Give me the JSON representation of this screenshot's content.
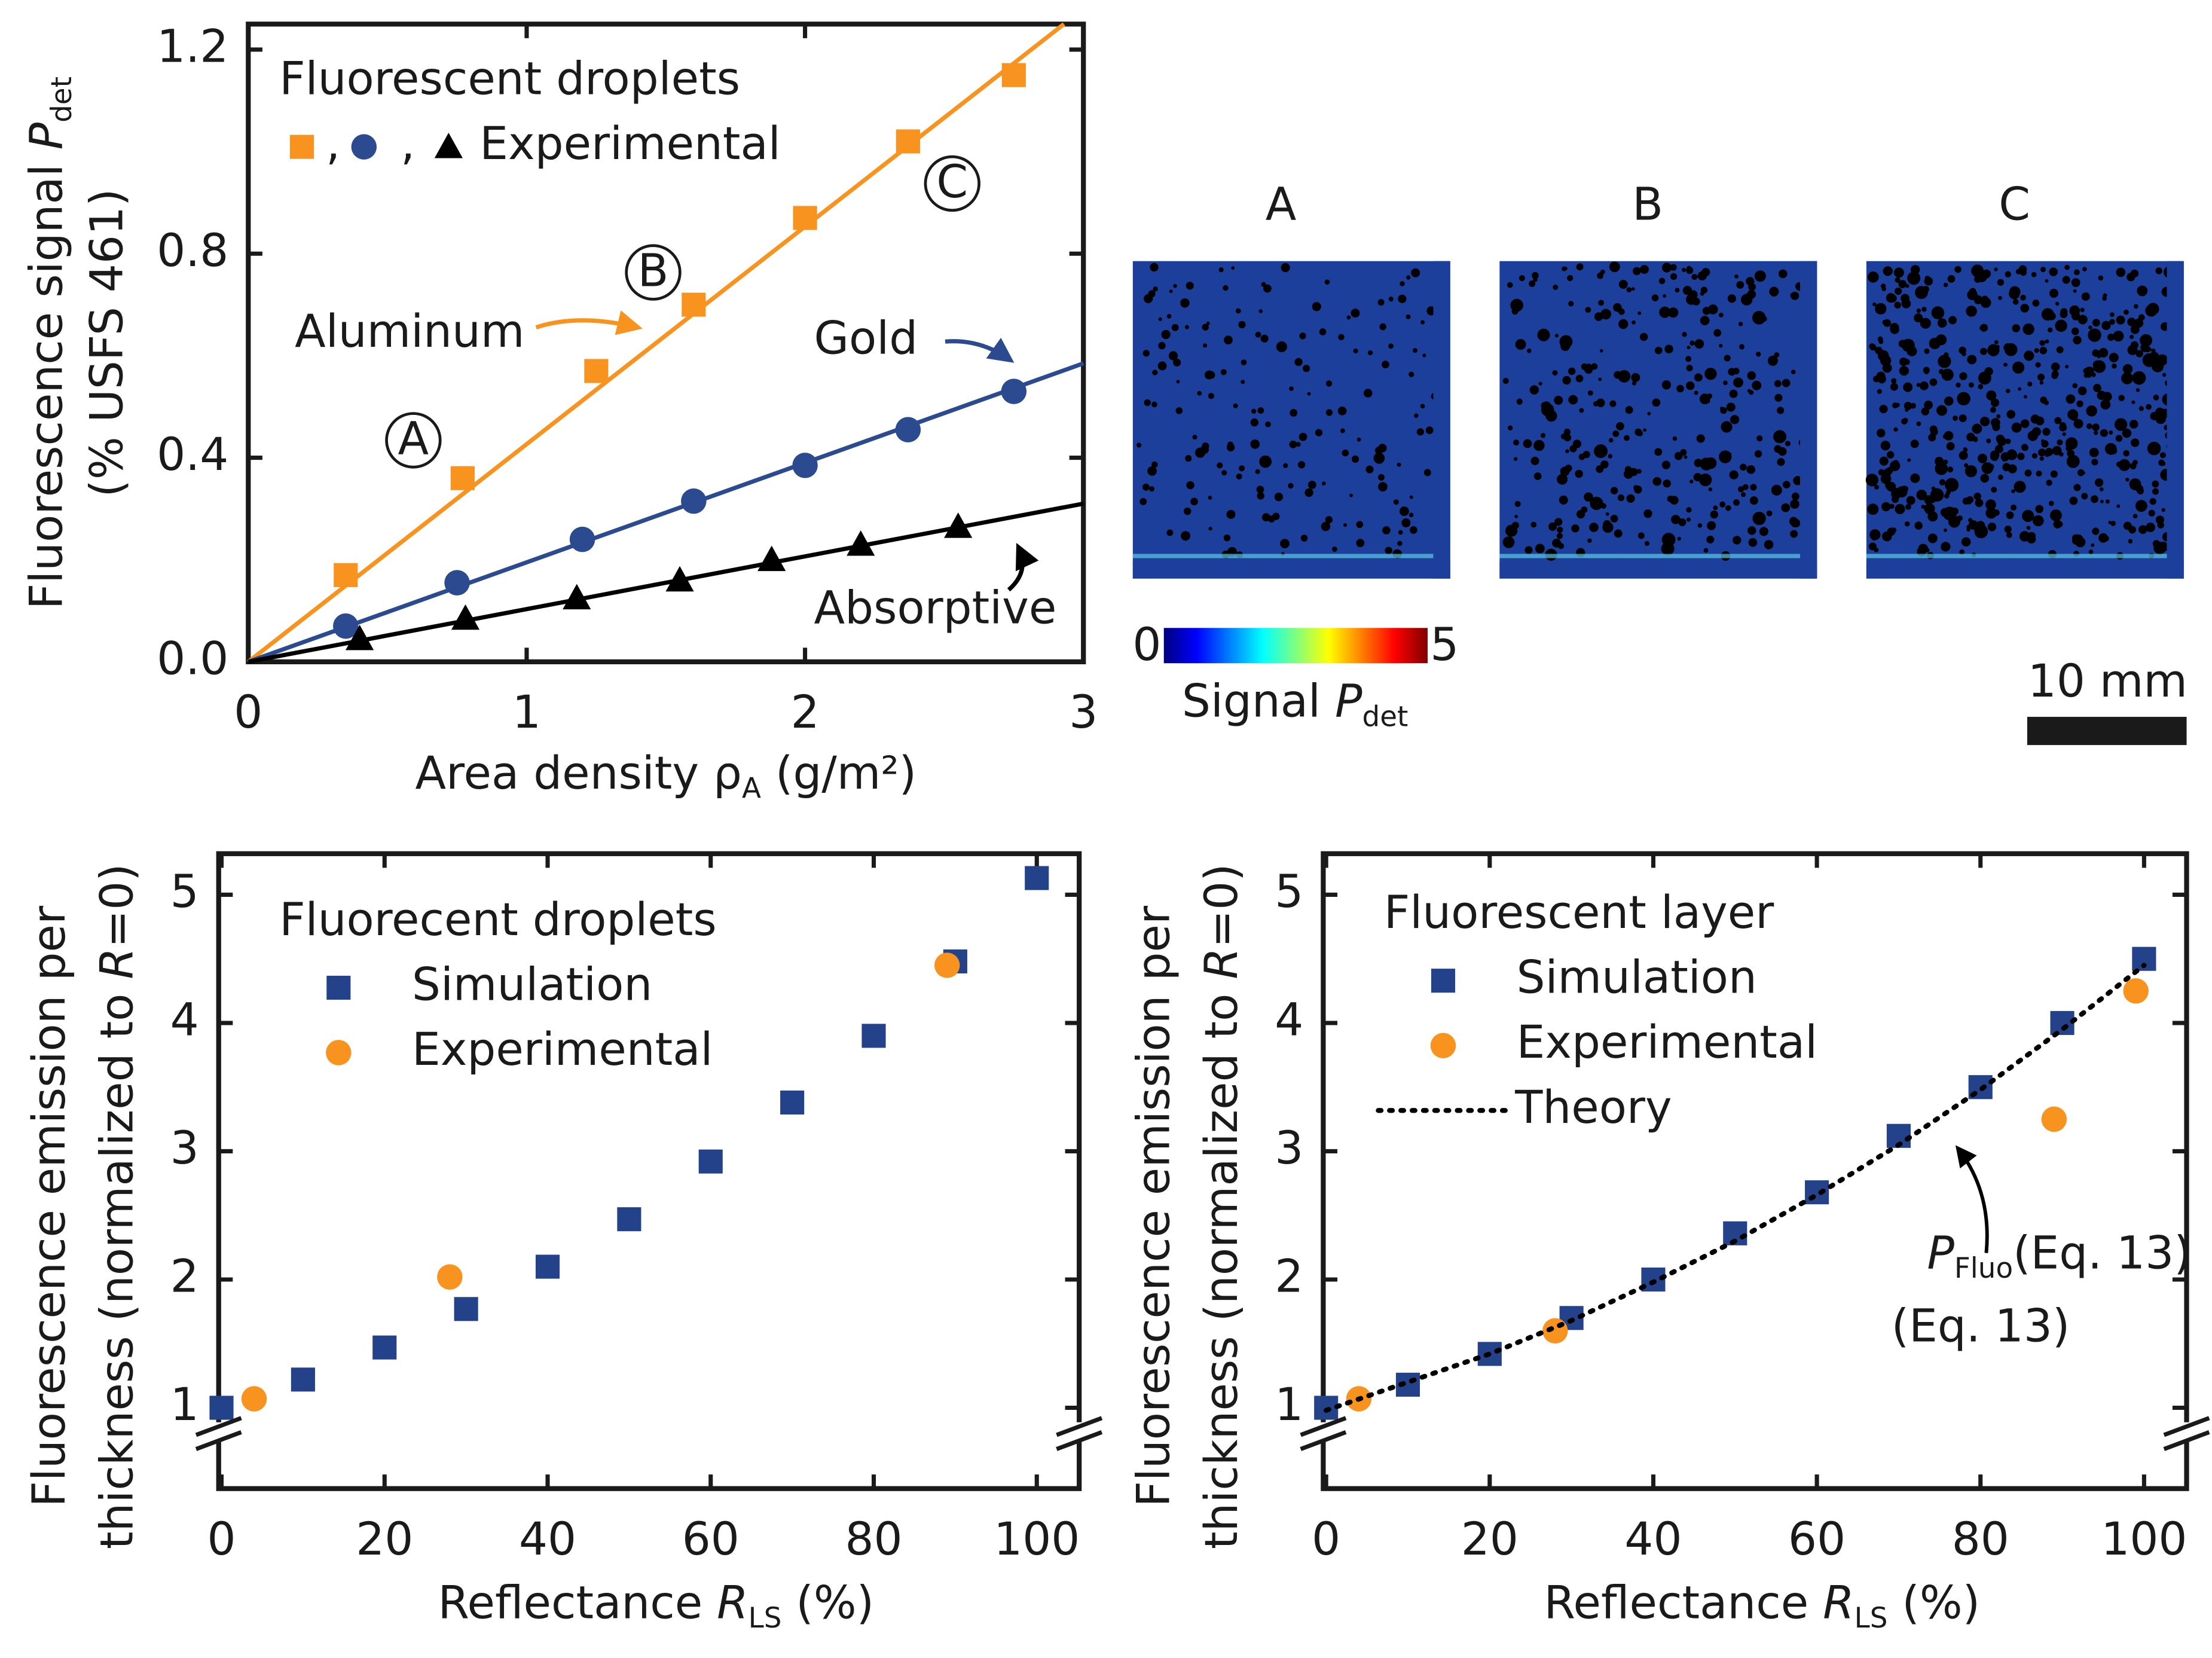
{
  "chart_data": [
    {
      "type": "scatter",
      "ylabel": [
        "Fluorescence signal ",
        "P",
        "det"
      ],
      "ylabel2": "(% USFS 461)",
      "xlabel": [
        "Area density ρ",
        "A",
        " (g/m²)"
      ],
      "xlim": [
        0,
        3
      ],
      "xticks": [
        0,
        1,
        2,
        3
      ],
      "ylim": [
        0,
        1.25
      ],
      "yticks": [
        {
          "value": 0,
          "label": "0.0"
        },
        0.4,
        0.8,
        1.2
      ],
      "legend_title": "Fluorescent droplets",
      "legend_separator": ",",
      "legend_label": "Experimental",
      "annotations": [
        "A",
        "B",
        "C"
      ],
      "series": [
        {
          "name": "Aluminum",
          "color": "#f7931e",
          "marker": "square",
          "x": [
            0.35,
            0.77,
            1.25,
            1.6,
            2.0,
            2.37,
            2.75
          ],
          "values": [
            0.17,
            0.36,
            0.57,
            0.7,
            0.87,
            1.02,
            1.15
          ],
          "fit_x": [
            0,
            2.93
          ],
          "fit_values": [
            0,
            1.25
          ]
        },
        {
          "name": "Gold",
          "color": "#2b4a90",
          "marker": "circle",
          "x": [
            0.35,
            0.75,
            1.2,
            1.6,
            2.0,
            2.37,
            2.75
          ],
          "values": [
            0.07,
            0.155,
            0.24,
            0.315,
            0.385,
            0.455,
            0.53
          ],
          "fit_x": [
            0,
            3
          ],
          "fit_values": [
            0,
            0.585
          ]
        },
        {
          "name": "Absorptive",
          "color": "#000000",
          "marker": "triangle",
          "x": [
            0.4,
            0.78,
            1.18,
            1.55,
            1.88,
            2.2,
            2.55
          ],
          "values": [
            0.045,
            0.085,
            0.125,
            0.16,
            0.2,
            0.23,
            0.265
          ],
          "fit_x": [
            0,
            3
          ],
          "fit_values": [
            0,
            0.31
          ]
        }
      ]
    },
    {
      "type": "heatmap",
      "panels": [
        "A",
        "B",
        "C"
      ],
      "colormap": "jet",
      "colorbar": {
        "clim": [
          0,
          5
        ],
        "ticks": [
          0,
          5
        ],
        "label": [
          "Signal ",
          "P",
          "det"
        ]
      },
      "scale_bar": "10 mm"
    },
    {
      "type": "scatter",
      "ylabel": "Fluorescence emission per",
      "ylabel2": [
        "thickness (normalized to ",
        "R",
        "=0)"
      ],
      "xlabel": [
        "Reflectance ",
        "R",
        "LS",
        " (%)"
      ],
      "xlim": [
        -0.35,
        105.2
      ],
      "xticks": [
        0,
        20,
        40,
        60,
        80,
        100
      ],
      "ylim": [
        0.37,
        5.32
      ],
      "yticks": [
        1,
        2,
        3,
        4,
        5
      ],
      "legend_title": "Fluorecent droplets",
      "series": [
        {
          "name": "Simulation",
          "color": "#24428a",
          "marker": "square",
          "x": [
            0,
            10,
            20,
            30,
            40,
            50,
            60,
            70,
            80,
            90,
            100
          ],
          "values": [
            1.0,
            1.22,
            1.47,
            1.77,
            2.1,
            2.47,
            2.92,
            3.38,
            3.9,
            4.48,
            5.13
          ]
        },
        {
          "name": "Experimental",
          "color": "#f7931e",
          "marker": "circle",
          "x": [
            4,
            28,
            89
          ],
          "values": [
            1.07,
            2.02,
            4.45
          ]
        }
      ]
    },
    {
      "type": "scatter",
      "ylabel": "Fluorescence emission per",
      "ylabel2": [
        "thickness (normalized to ",
        "R",
        "=0)"
      ],
      "xlabel": [
        "Reflectance ",
        "R",
        "LS",
        " (%)"
      ],
      "xlim": [
        -0.35,
        105.2
      ],
      "xticks": [
        0,
        20,
        40,
        60,
        80,
        100
      ],
      "ylim": [
        0.37,
        5.32
      ],
      "yticks": [
        1,
        2,
        3,
        4,
        5
      ],
      "legend_title": "Fluorescent layer",
      "annotations": [
        "P",
        "Fluo",
        "(Eq. 13)"
      ],
      "series": [
        {
          "name": "Simulation",
          "color": "#24428a",
          "marker": "square",
          "x": [
            0,
            10,
            20,
            30,
            40,
            50,
            60,
            70,
            80,
            90,
            100
          ],
          "values": [
            1.0,
            1.18,
            1.42,
            1.7,
            2.0,
            2.36,
            2.68,
            3.12,
            3.5,
            4.0,
            4.5
          ]
        },
        {
          "name": "Experimental",
          "color": "#f7931e",
          "marker": "circle",
          "x": [
            4,
            28,
            89,
            99
          ],
          "values": [
            1.07,
            1.6,
            3.25,
            4.25
          ]
        },
        {
          "name": "Theory",
          "color": "#000000",
          "marker": "none",
          "line": "dotted",
          "x": [
            0,
            10,
            20,
            30,
            40,
            50,
            60,
            70,
            80,
            90,
            100
          ],
          "values": [
            0.98,
            1.2,
            1.42,
            1.68,
            1.98,
            2.3,
            2.66,
            3.05,
            3.48,
            3.95,
            4.45
          ]
        }
      ]
    }
  ]
}
